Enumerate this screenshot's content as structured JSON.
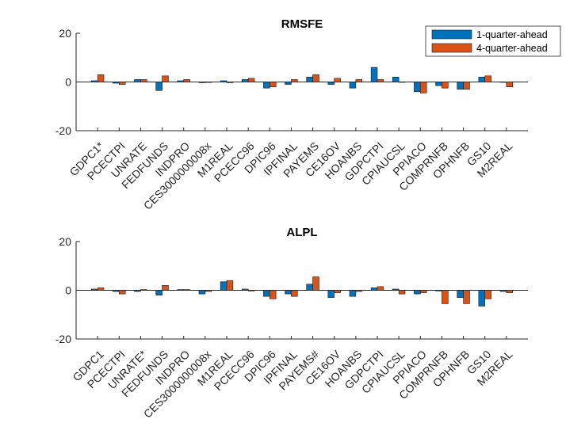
{
  "colors": {
    "series1": "#0072BD",
    "series2": "#D95319"
  },
  "legend": {
    "items": [
      "1-quarter-ahead",
      "4-quarter-ahead"
    ],
    "placement": "top-right"
  },
  "chart_data": [
    {
      "type": "bar",
      "title": "RMSFE",
      "xlabel": "",
      "ylabel": "",
      "ylim": [
        -20,
        20
      ],
      "yticks": [
        -20,
        0,
        20
      ],
      "categories": [
        "GDPC1*",
        "PCECTPI",
        "UNRATE",
        "FEDFUNDS",
        "INDPRO",
        "CES3000000008x",
        "M1REAL",
        "PCECC96",
        "DPIC96",
        "IPFINAL",
        "PAYEMS",
        "CE16OV",
        "HOANBS",
        "GDPCTPI",
        "CPIAUCSL",
        "PPIACO",
        "COMPRNFB",
        "OPHNFB",
        "GS10",
        "M2REAL"
      ],
      "series": [
        {
          "name": "1-quarter-ahead",
          "values": [
            0.5,
            -0.5,
            1.0,
            -3.5,
            0.5,
            -0.3,
            0.5,
            1.0,
            -2.5,
            -1.0,
            2.0,
            -1.0,
            -2.5,
            6.0,
            2.0,
            -4.0,
            -1.5,
            -3.0,
            2.0,
            0.0
          ]
        },
        {
          "name": "4-quarter-ahead",
          "values": [
            3.0,
            -1.0,
            1.0,
            2.5,
            1.0,
            -0.2,
            -0.3,
            1.5,
            -2.0,
            1.0,
            3.0,
            1.5,
            1.0,
            1.0,
            0.0,
            -4.5,
            -2.5,
            -3.0,
            2.5,
            -2.0
          ]
        }
      ]
    },
    {
      "type": "bar",
      "title": "ALPL",
      "xlabel": "",
      "ylabel": "",
      "ylim": [
        -20,
        20
      ],
      "yticks": [
        -20,
        0,
        20
      ],
      "categories": [
        "GDPC1",
        "PCECTPI",
        "UNRATE*",
        "FEDFUNDS",
        "INDPRO",
        "CES3000000008x",
        "M1REAL",
        "PCECC96",
        "DPIC96",
        "IPFINAL",
        "PAYEMS#",
        "CE16OV",
        "HOANBS",
        "GDPCTPI",
        "CPIAUCSL",
        "PPIACO",
        "COMPRNFB",
        "OPHNFB",
        "GS10",
        "M2REAL"
      ],
      "series": [
        {
          "name": "1-quarter-ahead",
          "values": [
            0.5,
            -0.5,
            -0.5,
            -2.0,
            0.3,
            -1.5,
            3.5,
            0.5,
            -2.5,
            -1.5,
            2.5,
            -3.0,
            -2.5,
            1.0,
            0.5,
            -1.5,
            -0.3,
            -3.0,
            -6.5,
            -0.5
          ]
        },
        {
          "name": "4-quarter-ahead",
          "values": [
            1.0,
            -1.5,
            0.3,
            2.0,
            0.3,
            -0.5,
            4.0,
            -0.3,
            -3.5,
            -2.5,
            5.5,
            -1.0,
            -0.5,
            1.5,
            -1.5,
            -1.0,
            -5.5,
            -5.5,
            -3.5,
            -1.0
          ]
        }
      ]
    }
  ]
}
